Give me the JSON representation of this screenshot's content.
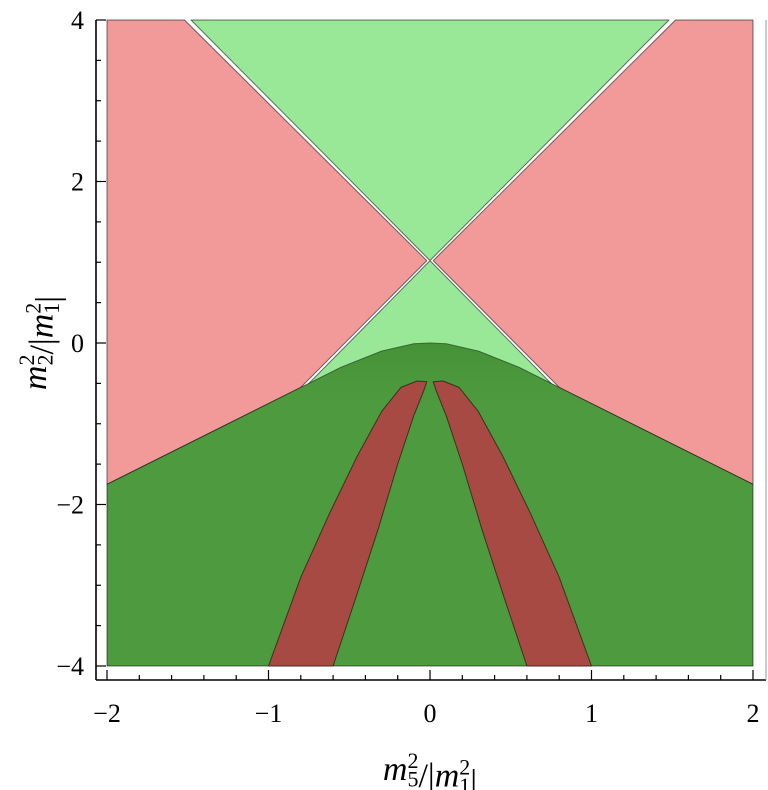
{
  "chart_data": {
    "type": "area",
    "title": "",
    "xlabel": {
      "parts": [
        {
          "text": "m",
          "style": "italic"
        },
        {
          "text": "5",
          "style": "sub"
        },
        {
          "text": "2",
          "style": "sup"
        },
        {
          "text": "/|",
          "style": "normal"
        },
        {
          "text": "m",
          "style": "italic"
        },
        {
          "text": "1",
          "style": "sub"
        },
        {
          "text": "2",
          "style": "sup"
        },
        {
          "text": "|",
          "style": "normal"
        }
      ]
    },
    "ylabel": {
      "parts": [
        {
          "text": "m",
          "style": "italic"
        },
        {
          "text": "2",
          "style": "sub"
        },
        {
          "text": "2",
          "style": "sup"
        },
        {
          "text": "/|",
          "style": "normal"
        },
        {
          "text": "m",
          "style": "italic"
        },
        {
          "text": "1",
          "style": "sub"
        },
        {
          "text": "2",
          "style": "sup"
        },
        {
          "text": "|",
          "style": "normal"
        }
      ]
    },
    "xlim": [
      -2,
      2
    ],
    "ylim": [
      -4,
      4
    ],
    "xticks": [
      {
        "value": -2,
        "label": "−2"
      },
      {
        "value": -1,
        "label": "−1"
      },
      {
        "value": 0,
        "label": "0"
      },
      {
        "value": 1,
        "label": "1"
      },
      {
        "value": 2,
        "label": "2"
      }
    ],
    "yticks": [
      {
        "value": -4,
        "label": "−4"
      },
      {
        "value": -2,
        "label": "−2"
      },
      {
        "value": 0,
        "label": "0"
      },
      {
        "value": 2,
        "label": "2"
      },
      {
        "value": 4,
        "label": "4"
      }
    ],
    "grid": false,
    "legend": "none",
    "regions": [
      {
        "id": "light-green-wedge",
        "color": "#98e898",
        "points": [
          [
            -1.48,
            4
          ],
          [
            1.48,
            4
          ],
          [
            0,
            1.02
          ],
          [
            0.76,
            -0.52
          ],
          [
            -0.76,
            -0.52
          ],
          [
            0,
            1.02
          ]
        ]
      },
      {
        "id": "pink-left",
        "color": "#f29a9a",
        "points": [
          [
            -2,
            4
          ],
          [
            -1.52,
            4
          ],
          [
            -0.02,
            1.02
          ],
          [
            -0.8,
            -0.55
          ],
          [
            -2,
            -1.75
          ]
        ]
      },
      {
        "id": "pink-right",
        "color": "#f29a9a",
        "points": [
          [
            2,
            4
          ],
          [
            1.52,
            4
          ],
          [
            0.02,
            1.02
          ],
          [
            0.8,
            -0.55
          ],
          [
            2,
            -1.75
          ]
        ]
      },
      {
        "id": "dark-green-dome",
        "color": "#4e9a3e",
        "points": [
          [
            -2,
            -1.75
          ],
          [
            -0.8,
            -0.55
          ],
          [
            -0.55,
            -0.3
          ],
          [
            -0.3,
            -0.1
          ],
          [
            -0.1,
            -0.01
          ],
          [
            0,
            0
          ],
          [
            0.1,
            -0.01
          ],
          [
            0.3,
            -0.1
          ],
          [
            0.55,
            -0.3
          ],
          [
            0.8,
            -0.55
          ],
          [
            2,
            -1.75
          ],
          [
            2,
            -4
          ],
          [
            -2,
            -4
          ]
        ]
      },
      {
        "id": "red-band-left",
        "color": "#a84a44",
        "points": [
          [
            -0.02,
            -0.48
          ],
          [
            -0.08,
            -0.47
          ],
          [
            -0.18,
            -0.55
          ],
          [
            -0.3,
            -0.85
          ],
          [
            -0.45,
            -1.4
          ],
          [
            -0.62,
            -2.1
          ],
          [
            -0.8,
            -2.9
          ],
          [
            -1.0,
            -4.0
          ],
          [
            -0.6,
            -4.0
          ],
          [
            -0.45,
            -3.1
          ],
          [
            -0.32,
            -2.3
          ],
          [
            -0.2,
            -1.5
          ],
          [
            -0.1,
            -0.9
          ],
          [
            -0.04,
            -0.6
          ]
        ]
      },
      {
        "id": "red-band-right",
        "color": "#a84a44",
        "points": [
          [
            0.02,
            -0.48
          ],
          [
            0.08,
            -0.47
          ],
          [
            0.18,
            -0.55
          ],
          [
            0.3,
            -0.85
          ],
          [
            0.45,
            -1.4
          ],
          [
            0.62,
            -2.1
          ],
          [
            0.8,
            -2.9
          ],
          [
            1.0,
            -4.0
          ],
          [
            0.6,
            -4.0
          ],
          [
            0.45,
            -3.1
          ],
          [
            0.32,
            -2.3
          ],
          [
            0.2,
            -1.5
          ],
          [
            0.1,
            -0.9
          ],
          [
            0.04,
            -0.6
          ]
        ]
      }
    ]
  }
}
